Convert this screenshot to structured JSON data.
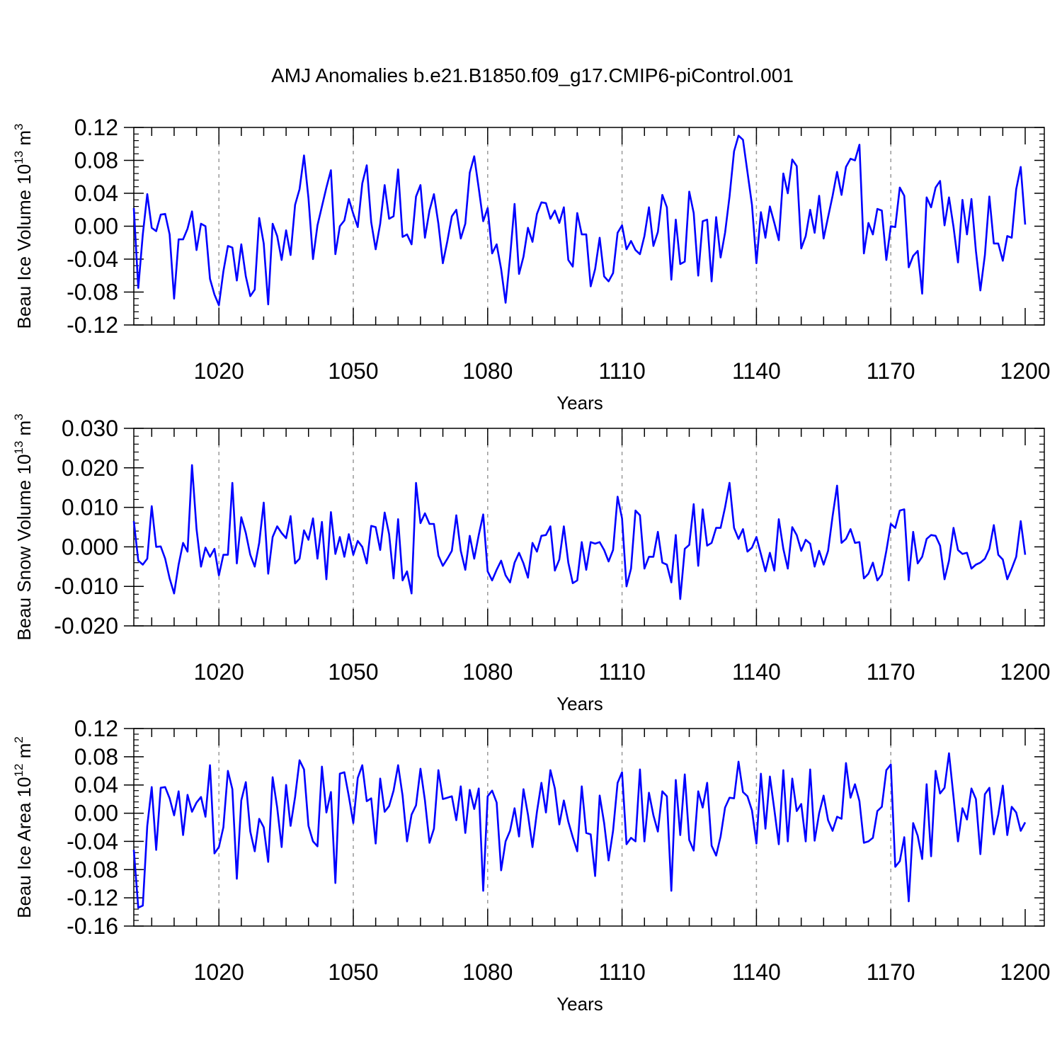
{
  "title": "AMJ Anomalies b.e21.B1850.f09_g17.CMIP6-piControl.001",
  "colors": {
    "line": "#0000ff",
    "axis": "#000000",
    "grid": "#999999"
  },
  "chart_data": [
    {
      "type": "line",
      "ylabel_main": "Beau Ice Volume 10",
      "ylabel_exp": "13",
      "ylabel_unit": "m",
      "ylabel_unit_exp": "3",
      "xlabel": "Years",
      "xlim": [
        1001,
        1200
      ],
      "ylim": [
        -0.12,
        0.12
      ],
      "xticks": [
        1020,
        1050,
        1080,
        1110,
        1140,
        1170,
        1200
      ],
      "xtick_labels": [
        "1020",
        "1050",
        "1080",
        "1110",
        "1140",
        "1170",
        "1200"
      ],
      "yticks": [
        -0.12,
        -0.08,
        -0.04,
        0.0,
        0.04,
        0.08,
        0.12
      ],
      "ytick_labels": [
        "-0.12",
        "-0.08",
        "-0.04",
        "0.00",
        "0.04",
        "0.08",
        "0.12"
      ],
      "x_start": 1001,
      "values": [
        0.022,
        -0.075,
        -0.01,
        0.039,
        -0.002,
        -0.006,
        0.014,
        0.015,
        -0.01,
        -0.088,
        -0.016,
        -0.016,
        -0.003,
        0.018,
        -0.029,
        0.003,
        0.0,
        -0.064,
        -0.083,
        -0.096,
        -0.055,
        -0.024,
        -0.026,
        -0.066,
        -0.022,
        -0.061,
        -0.085,
        -0.077,
        0.01,
        -0.021,
        -0.095,
        0.003,
        -0.012,
        -0.041,
        -0.005,
        -0.035,
        0.026,
        0.045,
        0.086,
        0.034,
        -0.04,
        0.001,
        0.024,
        0.047,
        0.068,
        -0.034,
        0.0,
        0.007,
        0.033,
        0.015,
        -0.001,
        0.052,
        0.074,
        0.005,
        -0.028,
        0.003,
        0.05,
        0.009,
        0.012,
        0.069,
        -0.013,
        -0.01,
        -0.022,
        0.036,
        0.05,
        -0.014,
        0.019,
        0.039,
        0.003,
        -0.045,
        -0.018,
        0.012,
        0.02,
        -0.015,
        0.003,
        0.065,
        0.085,
        0.046,
        0.006,
        0.022,
        -0.033,
        -0.022,
        -0.052,
        -0.093,
        -0.038,
        0.027,
        -0.058,
        -0.037,
        -0.002,
        -0.019,
        0.015,
        0.029,
        0.028,
        0.009,
        0.019,
        0.004,
        0.023,
        -0.041,
        -0.049,
        0.016,
        -0.01,
        -0.01,
        -0.073,
        -0.052,
        -0.014,
        -0.061,
        -0.067,
        -0.057,
        -0.008,
        0.001,
        -0.028,
        -0.018,
        -0.029,
        -0.034,
        -0.012,
        0.023,
        -0.024,
        -0.007,
        0.038,
        0.023,
        -0.065,
        0.008,
        -0.046,
        -0.043,
        0.042,
        0.016,
        -0.06,
        0.006,
        0.008,
        -0.067,
        0.011,
        -0.038,
        -0.008,
        0.036,
        0.091,
        0.11,
        0.105,
        0.066,
        0.026,
        -0.045,
        0.017,
        -0.014,
        0.024,
        0.004,
        -0.017,
        0.064,
        0.04,
        0.081,
        0.073,
        -0.027,
        -0.012,
        0.02,
        -0.008,
        0.037,
        -0.015,
        0.011,
        0.037,
        0.066,
        0.038,
        0.072,
        0.082,
        0.08,
        0.099,
        -0.033,
        0.004,
        -0.01,
        0.021,
        0.019,
        -0.041,
        0.0,
        -0.001,
        0.047,
        0.037,
        -0.05,
        -0.036,
        -0.03,
        -0.082,
        0.035,
        0.023,
        0.047,
        0.055,
        0.001,
        0.035,
        -0.001,
        -0.044,
        0.032,
        -0.01,
        0.033,
        -0.03,
        -0.078,
        -0.035,
        0.036,
        -0.021,
        -0.021,
        -0.042,
        -0.012,
        -0.014,
        0.045,
        0.072,
        0.002
      ]
    },
    {
      "type": "line",
      "ylabel_main": "Beau Snow Volume 10",
      "ylabel_exp": "13",
      "ylabel_unit": "m",
      "ylabel_unit_exp": "3",
      "xlabel": "Years",
      "xlim": [
        1001,
        1200
      ],
      "ylim": [
        -0.02,
        0.03
      ],
      "xticks": [
        1020,
        1050,
        1080,
        1110,
        1140,
        1170,
        1200
      ],
      "xtick_labels": [
        "1020",
        "1050",
        "1080",
        "1110",
        "1140",
        "1170",
        "1200"
      ],
      "yticks": [
        -0.02,
        -0.01,
        0.0,
        0.01,
        0.02,
        0.03
      ],
      "ytick_labels": [
        "-0.020",
        "-0.010",
        "0.000",
        "0.010",
        "0.020",
        "0.030"
      ],
      "x_start": 1001,
      "values": [
        0.0065,
        -0.0035,
        -0.0045,
        -0.003,
        0.0103,
        0.0,
        0.0001,
        -0.003,
        -0.008,
        -0.0118,
        -0.0045,
        0.001,
        -0.0012,
        0.0207,
        0.0045,
        -0.005,
        -0.0002,
        -0.0025,
        -0.0005,
        -0.0072,
        -0.002,
        -0.002,
        0.0162,
        -0.0042,
        0.0075,
        0.0035,
        -0.002,
        -0.005,
        0.001,
        0.0112,
        -0.0068,
        0.0025,
        0.0052,
        0.0035,
        0.0022,
        0.0078,
        -0.0042,
        -0.003,
        0.0042,
        0.0018,
        0.0072,
        -0.003,
        0.0063,
        -0.0082,
        0.0088,
        -0.0018,
        0.0025,
        -0.0025,
        0.0032,
        -0.002,
        0.0015,
        0.0,
        -0.0042,
        0.0053,
        0.005,
        -0.0008,
        0.0087,
        0.0032,
        -0.008,
        0.007,
        -0.0085,
        -0.0062,
        -0.0118,
        0.0162,
        0.006,
        0.0085,
        0.0058,
        0.0058,
        -0.0022,
        -0.0048,
        -0.003,
        -0.001,
        0.008,
        -0.001,
        -0.0058,
        0.0028,
        -0.003,
        0.003,
        0.0082,
        -0.0062,
        -0.0085,
        -0.0058,
        -0.0035,
        -0.0072,
        -0.009,
        -0.004,
        -0.0015,
        -0.0042,
        -0.0078,
        0.001,
        -0.0012,
        0.0028,
        0.003,
        0.0052,
        -0.006,
        -0.0032,
        0.0052,
        -0.004,
        -0.0092,
        -0.0085,
        0.0012,
        -0.0058,
        0.0012,
        0.0008,
        0.0012,
        -0.0008,
        -0.0037,
        -0.0008,
        0.0127,
        0.0072,
        -0.01,
        -0.0055,
        0.0092,
        0.008,
        -0.0055,
        -0.0025,
        -0.0025,
        0.0038,
        -0.004,
        -0.0045,
        -0.009,
        0.003,
        -0.0132,
        -0.0005,
        0.0005,
        0.0108,
        -0.0048,
        0.0095,
        0.0003,
        0.001,
        0.0048,
        0.0048,
        0.01,
        0.0162,
        0.0048,
        0.002,
        0.0045,
        -0.0012,
        -0.0002,
        0.0025,
        -0.0018,
        -0.0062,
        -0.0015,
        -0.006,
        0.007,
        -0.0005,
        -0.0055,
        0.005,
        0.003,
        -0.001,
        0.0018,
        0.0008,
        -0.005,
        -0.001,
        -0.0045,
        -0.001,
        0.0078,
        0.0155,
        0.001,
        0.002,
        0.0045,
        0.001,
        0.0012,
        -0.008,
        -0.0068,
        -0.004,
        -0.0085,
        -0.007,
        -0.001,
        0.0058,
        0.0048,
        0.0092,
        0.0095,
        -0.0085,
        0.0038,
        -0.0042,
        -0.0025,
        0.002,
        0.003,
        0.0028,
        0.0003,
        -0.0082,
        -0.0035,
        0.0048,
        -0.0008,
        -0.0018,
        -0.0015,
        -0.0055,
        -0.0045,
        -0.004,
        -0.003,
        -0.0005,
        0.0055,
        -0.002,
        -0.0032,
        -0.0082,
        -0.0055,
        -0.0025,
        0.0065,
        -0.002
      ]
    },
    {
      "type": "line",
      "ylabel_main": "Beau Ice Area 10",
      "ylabel_exp": "12",
      "ylabel_unit": "m",
      "ylabel_unit_exp": "2",
      "xlabel": "Years",
      "xlim": [
        1001,
        1200
      ],
      "ylim": [
        -0.16,
        0.12
      ],
      "xticks": [
        1020,
        1050,
        1080,
        1110,
        1140,
        1170,
        1200
      ],
      "xtick_labels": [
        "1020",
        "1050",
        "1080",
        "1110",
        "1140",
        "1170",
        "1200"
      ],
      "yticks": [
        -0.16,
        -0.12,
        -0.08,
        -0.04,
        0.0,
        0.04,
        0.08,
        0.12
      ],
      "ytick_labels": [
        "-0.16",
        "-0.12",
        "-0.08",
        "-0.04",
        "0.00",
        "0.04",
        "0.08",
        "0.12"
      ],
      "x_start": 1001,
      "values": [
        -0.052,
        -0.134,
        -0.131,
        -0.018,
        0.037,
        -0.052,
        0.036,
        0.037,
        0.021,
        -0.003,
        0.031,
        -0.031,
        0.026,
        0.002,
        0.015,
        0.023,
        -0.005,
        0.068,
        -0.057,
        -0.048,
        -0.02,
        0.06,
        0.034,
        -0.093,
        0.018,
        0.044,
        -0.026,
        -0.054,
        -0.008,
        -0.02,
        -0.069,
        0.051,
        0.008,
        -0.048,
        0.04,
        -0.018,
        0.023,
        0.075,
        0.062,
        -0.018,
        -0.04,
        -0.047,
        0.066,
        0.001,
        0.03,
        -0.099,
        0.056,
        0.058,
        0.024,
        -0.014,
        0.05,
        0.068,
        0.017,
        0.021,
        -0.043,
        0.049,
        0.002,
        0.01,
        0.032,
        0.068,
        0.025,
        -0.04,
        -0.002,
        0.011,
        0.063,
        0.018,
        -0.042,
        -0.022,
        0.061,
        0.02,
        0.022,
        0.024,
        -0.01,
        0.038,
        -0.028,
        0.033,
        0.006,
        0.035,
        -0.11,
        0.024,
        0.032,
        0.015,
        -0.081,
        -0.04,
        -0.025,
        0.007,
        -0.033,
        0.034,
        -0.002,
        -0.048,
        0.002,
        0.043,
        0.001,
        0.061,
        0.035,
        -0.016,
        0.018,
        -0.012,
        -0.034,
        -0.054,
        0.038,
        -0.028,
        -0.03,
        -0.089,
        0.025,
        -0.014,
        -0.067,
        -0.025,
        0.043,
        0.058,
        -0.044,
        -0.035,
        -0.04,
        0.062,
        -0.04,
        0.029,
        -0.003,
        -0.026,
        0.031,
        0.024,
        -0.11,
        0.047,
        -0.031,
        0.055,
        -0.038,
        -0.053,
        0.031,
        0.008,
        0.043,
        -0.046,
        -0.06,
        -0.033,
        0.008,
        0.022,
        0.021,
        0.073,
        0.03,
        0.024,
        0.004,
        -0.043,
        0.056,
        -0.022,
        0.052,
        0.005,
        -0.044,
        0.061,
        -0.04,
        0.049,
        0.003,
        0.013,
        -0.04,
        0.062,
        -0.039,
        0.0,
        0.025,
        -0.01,
        -0.025,
        -0.005,
        -0.008,
        0.071,
        0.022,
        0.041,
        0.017,
        -0.042,
        -0.04,
        -0.035,
        0.003,
        0.009,
        0.061,
        0.069,
        -0.076,
        -0.068,
        -0.034,
        -0.125,
        -0.014,
        -0.032,
        -0.065,
        0.041,
        -0.061,
        0.06,
        0.028,
        0.036,
        0.085,
        0.023,
        -0.04,
        0.007,
        -0.009,
        0.035,
        0.02,
        -0.058,
        0.027,
        0.036,
        -0.03,
        -0.002,
        0.039,
        -0.031,
        0.009,
        0.001,
        -0.025,
        -0.013
      ]
    }
  ]
}
